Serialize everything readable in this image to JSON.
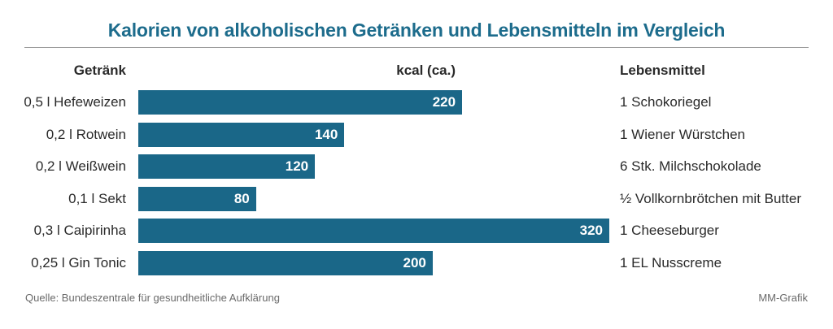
{
  "header": {
    "title": "Kalorien von alkoholischen Getränken und Lebensmitteln im Vergleich",
    "col_left": "Getränk",
    "col_mid": "kcal (ca.)",
    "col_right": "Lebensmittel"
  },
  "chart_data": {
    "type": "bar",
    "orientation": "horizontal",
    "title": "Kalorien von alkoholischen Getränken und Lebensmitteln im Vergleich",
    "categories": [
      "0,5 l Hefeweizen",
      "0,2 l Rotwein",
      "0,2 l Weißwein",
      "0,1 l Sekt",
      "0,3 l Caipirinha",
      "0,25 l Gin Tonic"
    ],
    "values": [
      220,
      140,
      120,
      80,
      320,
      200
    ],
    "value_labels": [
      "220",
      "140",
      "120",
      "80",
      "320",
      "200"
    ],
    "equivalents": [
      "1 Schokoriegel",
      "1 Wiener Würstchen",
      "6 Stk. Milchschokolade",
      "½ Vollkornbrötchen mit Butter",
      "1 Cheeseburger",
      "1 EL Nusscreme"
    ],
    "xlim": [
      0,
      320
    ],
    "grid": false,
    "bar_color": "#1a6788"
  },
  "footer": {
    "source": "Quelle: Bundeszentrale für gesundheitliche Aufklärung",
    "credit": "MM-Grafik"
  }
}
